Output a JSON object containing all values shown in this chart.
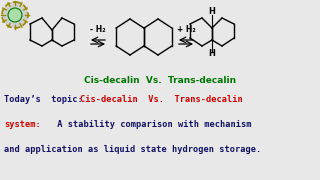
{
  "bg_color": "#e8e8e8",
  "title_label_green": "Cis-decalin  Vs.  Trans-decalin",
  "title_color": "#007700",
  "h2_minus": "- H₂",
  "h2_plus": "+ H₂",
  "line1_black": "Today’s  topic: ",
  "line1_red": "Cis-decalin  Vs.  Trans-decalin",
  "line2_red": "system:",
  "line2_black": " A stability comparison with mechanism",
  "line3_black": "and application as liquid state hydrogen storage.",
  "text_color_dark": "#111166",
  "text_color_red": "#cc0000",
  "font_size_label": 6.5,
  "font_size_bottom": 6.2,
  "font_size_h": 5.5,
  "struct_lw": 1.0
}
